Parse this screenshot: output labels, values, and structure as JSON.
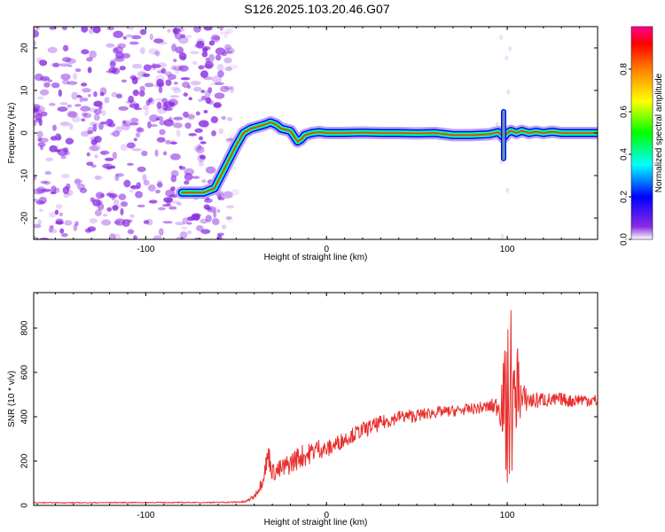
{
  "title": "S126.2025.103.20.46.G07",
  "colors": {
    "snr_line": "#e8302e",
    "speckle": "#8a2be2",
    "axis": "#000000"
  },
  "chart_data": [
    {
      "type": "heatmap",
      "xlabel": "Height of straight line (km)",
      "ylabel": "Frequency (Hz)",
      "xlim": [
        -162,
        150
      ],
      "ylim": [
        -25,
        25
      ],
      "x_ticks": [
        -100,
        0,
        100
      ],
      "x_tick_labels": [
        "-100",
        "0",
        "100"
      ],
      "y_ticks": [
        -20,
        -10,
        0,
        10,
        20
      ],
      "y_tick_labels": [
        "-20",
        "-10",
        "0",
        "10",
        "20"
      ],
      "colorbar": {
        "label": "Normalized spectral amplitude",
        "range": [
          0,
          1
        ],
        "ticks": [
          0.0,
          0.2,
          0.4,
          0.6,
          0.8
        ],
        "tick_labels": [
          "0.0",
          "0.2",
          "0.4",
          "0.6",
          "0.8"
        ]
      },
      "signal_trace": {
        "x": [
          -80,
          -74,
          -68,
          -62,
          -56,
          -50,
          -46,
          -42,
          -38,
          -34,
          -31,
          -28,
          -25,
          -20,
          -16,
          -14,
          -12,
          -8,
          -4,
          0,
          10,
          20,
          30,
          40,
          50,
          60,
          70,
          80,
          90,
          95,
          98,
          100,
          102,
          105,
          108,
          112,
          116,
          120,
          125,
          130,
          135,
          140,
          145,
          150
        ],
        "y": [
          -14,
          -14,
          -14,
          -13,
          -8,
          -3,
          0,
          1,
          1.5,
          2,
          2.5,
          2,
          1,
          0.5,
          -2,
          -1.5,
          -0.5,
          0,
          0.2,
          0,
          0,
          0.1,
          0,
          0,
          -0.1,
          0,
          -0.5,
          -0.5,
          -0.3,
          0.2,
          -1,
          0,
          0.5,
          0,
          0.5,
          0,
          0.3,
          0,
          0.3,
          0,
          0,
          0,
          0,
          0
        ],
        "spike": {
          "x": 98,
          "y_range": [
            -6,
            5
          ]
        }
      }
    },
    {
      "type": "line",
      "xlabel": "Height of straight line (km)",
      "ylabel": "SNR (10 * v/v)",
      "xlim": [
        -162,
        150
      ],
      "ylim": [
        0,
        960
      ],
      "x_ticks": [
        -100,
        0,
        100
      ],
      "x_tick_labels": [
        "-100",
        "0",
        "100"
      ],
      "y_ticks": [
        0,
        200,
        400,
        600,
        800
      ],
      "y_tick_labels": [
        "0",
        "200",
        "400",
        "600",
        "800"
      ],
      "series": [
        {
          "x": [
            -162,
            -150,
            -130,
            -110,
            -90,
            -70,
            -55,
            -45,
            -40,
            -36,
            -32,
            -30,
            -25,
            -20,
            -15,
            -10,
            -5,
            0,
            5,
            10,
            20,
            30,
            40,
            50,
            60,
            70,
            80,
            90,
            95,
            98,
            100,
            102,
            104,
            106,
            108,
            110,
            115,
            120,
            125,
            130,
            135,
            140,
            145,
            150
          ],
          "y": [
            12,
            12,
            12,
            13,
            13,
            13,
            14,
            16,
            40,
            100,
            230,
            150,
            160,
            190,
            220,
            230,
            260,
            250,
            275,
            300,
            340,
            370,
            400,
            405,
            420,
            425,
            435,
            445,
            450,
            470,
            400,
            520,
            430,
            580,
            460,
            480,
            470,
            480,
            470,
            480,
            470,
            480,
            475,
            470
          ],
          "amplitude": [
            2,
            2,
            2,
            2,
            2,
            2,
            3,
            4,
            10,
            30,
            60,
            40,
            50,
            50,
            55,
            50,
            45,
            40,
            40,
            35,
            35,
            35,
            30,
            30,
            25,
            25,
            25,
            30,
            50,
            200,
            380,
            420,
            200,
            180,
            100,
            60,
            40,
            35,
            35,
            30,
            30,
            30,
            30,
            30
          ]
        }
      ]
    }
  ]
}
